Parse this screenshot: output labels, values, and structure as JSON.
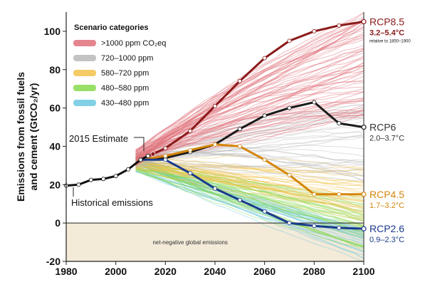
{
  "chart_data": {
    "type": "line",
    "xlabel": "",
    "ylabel_line1": "Emissions from fossil fuels",
    "ylabel_line2": "and cement (GtCO₂/yr)",
    "xlim": [
      1980,
      2100
    ],
    "ylim": [
      -20,
      110
    ],
    "x_ticks": [
      1980,
      2000,
      2020,
      2040,
      2060,
      2080,
      2100
    ],
    "y_ticks": [
      -20,
      0,
      20,
      40,
      60,
      80,
      100
    ],
    "legend_title": "Scenario categories",
    "legend": [
      {
        "label": ">1000 ppm CO₂eq",
        "color": "#e0707a"
      },
      {
        "label": "720–1000 ppm",
        "color": "#b8b8b8"
      },
      {
        "label": "580–720 ppm",
        "color": "#f2c24a"
      },
      {
        "label": "480–580 ppm",
        "color": "#86d94e"
      },
      {
        "label": "430–480 ppm",
        "color": "#6cc8e0"
      }
    ],
    "historical": {
      "label": "Historical emissions",
      "x": [
        1980,
        1985,
        1990,
        1995,
        2000,
        2005,
        2010,
        2013
      ],
      "y": [
        19.5,
        20,
        22.5,
        23,
        24.5,
        28,
        33,
        35
      ]
    },
    "estimate": {
      "label": "2015 Estimate",
      "x": 2015,
      "y": 36
    },
    "negative_zone_label": "net-negative global emissions",
    "series": [
      {
        "name": "RCP8.5",
        "range": "3.2–5.4°C",
        "note": "relative to 1850–1900",
        "color": "#8b1a1a",
        "x": [
          2010,
          2020,
          2030,
          2040,
          2050,
          2060,
          2070,
          2080,
          2090,
          2100
        ],
        "y": [
          33,
          39,
          48,
          61,
          74,
          86,
          95,
          100,
          103,
          105
        ]
      },
      {
        "name": "RCP6",
        "range": "2.0–3.7°C",
        "color": "#1a1a1a",
        "x": [
          2010,
          2020,
          2030,
          2040,
          2050,
          2060,
          2070,
          2080,
          2090,
          2100
        ],
        "y": [
          33,
          34,
          37,
          41,
          49,
          56,
          60,
          63,
          52,
          50
        ]
      },
      {
        "name": "RCP4.5",
        "range": "1.7–3.2°C",
        "color": "#d4860c",
        "x": [
          2010,
          2020,
          2030,
          2040,
          2050,
          2060,
          2070,
          2080,
          2090,
          2100
        ],
        "y": [
          33,
          35,
          38,
          41,
          40,
          33,
          25,
          15,
          15,
          15
        ]
      },
      {
        "name": "RCP2.6",
        "range": "0.9–2.3°C",
        "color": "#1a3a8c",
        "x": [
          2010,
          2020,
          2030,
          2040,
          2050,
          2060,
          2070,
          2080,
          2090,
          2100
        ],
        "y": [
          33,
          33,
          26,
          18,
          12,
          6,
          0,
          -1.5,
          -2.5,
          -3
        ]
      }
    ]
  }
}
